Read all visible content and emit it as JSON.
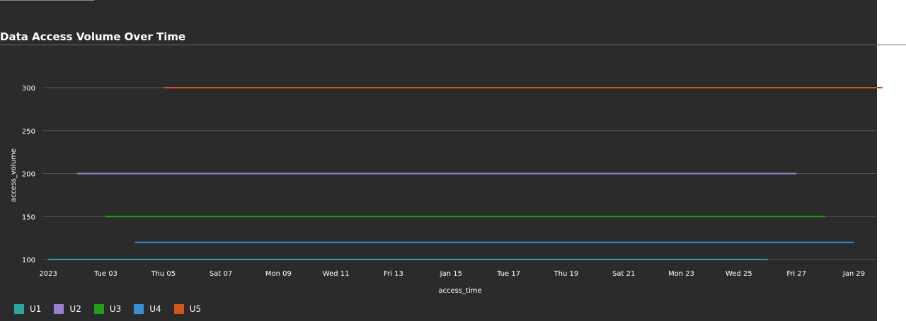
{
  "chart_data": {
    "type": "line",
    "title": "Data Access Volume Over Time",
    "xlabel": "access_time",
    "ylabel": "access_volume",
    "ylim": [
      100,
      300
    ],
    "yticks": [
      100,
      150,
      200,
      250,
      300
    ],
    "xticks": [
      "2023",
      "Tue 03",
      "Thu 05",
      "Sat 07",
      "Mon 09",
      "Wed 11",
      "Fri 13",
      "Jan 15",
      "Tue 17",
      "Thu 19",
      "Sat 21",
      "Mon 23",
      "Wed 25",
      "Fri 27",
      "Jan 29"
    ],
    "x_unit": "days since 2023-01-01",
    "x_range": [
      -0.2,
      28.8
    ],
    "grid": true,
    "legend": "bottom-left",
    "series": [
      {
        "name": "U1",
        "color": "#2ca5a0",
        "x": [
          0,
          25
        ],
        "values": [
          100,
          100
        ]
      },
      {
        "name": "U2",
        "color": "#9b7fce",
        "x": [
          1,
          26
        ],
        "values": [
          200,
          200
        ]
      },
      {
        "name": "U3",
        "color": "#1f9e1f",
        "x": [
          2,
          27
        ],
        "values": [
          150,
          150
        ]
      },
      {
        "name": "U4",
        "color": "#3a8ed6",
        "x": [
          3,
          28
        ],
        "values": [
          120,
          120
        ]
      },
      {
        "name": "U5",
        "color": "#d1561a",
        "x": [
          4,
          29
        ],
        "values": [
          300,
          300
        ]
      }
    ]
  }
}
